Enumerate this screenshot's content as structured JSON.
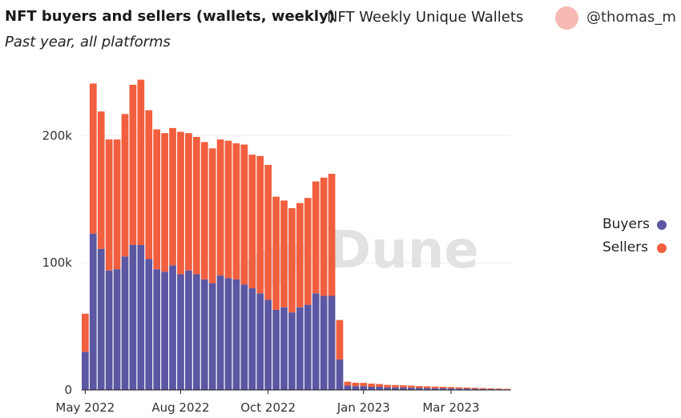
{
  "header": {
    "title": "NFT buyers and sellers (wallets, weekly)",
    "chart_name": "NFT Weekly Unique Wallets",
    "user": "@thomas_m",
    "subtitle": "Past year, all platforms"
  },
  "watermark": "Dune",
  "colors": {
    "buyers": "#5b57a3",
    "sellers": "#f15f3e",
    "avatar": "#f6b9b3"
  },
  "chart_data": {
    "type": "bar",
    "stacked": true,
    "title": "NFT buyers and sellers (wallets, weekly)",
    "subtitle": "Past year, all platforms",
    "ylim": [
      0,
      250000
    ],
    "yticks": [
      0,
      100000,
      200000
    ],
    "ytick_labels": [
      "0",
      "100k",
      "200k"
    ],
    "xtick_labels": [
      {
        "label": "May 2022",
        "index": 0
      },
      {
        "label": "Aug 2022",
        "index": 12
      },
      {
        "label": "Oct 2022",
        "index": 23
      },
      {
        "label": "Jan 2023",
        "index": 35
      },
      {
        "label": "Mar 2023",
        "index": 46
      }
    ],
    "grid": true,
    "legend_position": "right",
    "series": [
      {
        "name": "Buyers",
        "color": "#5b57a3",
        "values": [
          30000,
          123000,
          111000,
          94000,
          95000,
          105000,
          114000,
          114000,
          103000,
          95000,
          93000,
          98000,
          91000,
          94000,
          91000,
          87000,
          84000,
          90000,
          88000,
          87000,
          83000,
          80000,
          76000,
          71000,
          63000,
          65000,
          61000,
          65000,
          67000,
          76000,
          74000,
          74000,
          24000,
          3500,
          3000,
          3000,
          2500,
          2500,
          2000,
          2000,
          2000,
          1800,
          1600,
          1500,
          1400,
          1300,
          1200,
          1100,
          1000,
          900,
          800,
          700,
          600,
          500
        ]
      },
      {
        "name": "Sellers",
        "color": "#f15f3e",
        "values": [
          30000,
          118000,
          108000,
          103000,
          102000,
          112000,
          126000,
          130000,
          117000,
          110000,
          109000,
          108000,
          112000,
          108000,
          108000,
          108000,
          106000,
          107000,
          108000,
          107000,
          110000,
          105000,
          108000,
          106000,
          89000,
          84000,
          82000,
          82000,
          84000,
          88000,
          93000,
          96000,
          31000,
          3000,
          2700,
          2600,
          2500,
          2200,
          2000,
          1900,
          1700,
          1600,
          1500,
          1400,
          1300,
          1200,
          1100,
          1000,
          900,
          800,
          700,
          600,
          500,
          400
        ]
      }
    ]
  }
}
